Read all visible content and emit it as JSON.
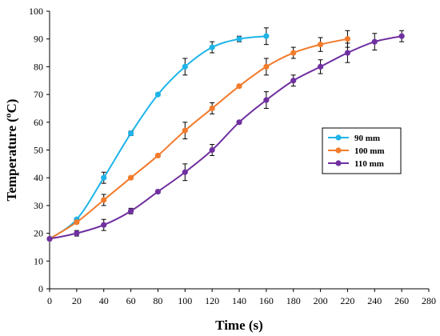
{
  "chart_data": {
    "type": "line",
    "xlabel": "Time (s)",
    "ylabel": "Temperature (ºC)",
    "xlim": [
      0,
      280
    ],
    "ylim": [
      0,
      100
    ],
    "xticks": [
      0,
      20,
      40,
      60,
      80,
      100,
      120,
      140,
      160,
      180,
      200,
      220,
      240,
      260,
      280
    ],
    "yticks": [
      0,
      10,
      20,
      30,
      40,
      50,
      60,
      70,
      80,
      90,
      100
    ],
    "grid": false,
    "legend_position": "right",
    "series": [
      {
        "name": "90 mm",
        "color": "#1fb4e8",
        "x": [
          0,
          20,
          40,
          60,
          80,
          100,
          120,
          140,
          160
        ],
        "y": [
          18,
          25,
          40,
          56,
          70,
          80,
          87,
          90,
          91
        ],
        "error": [
          0,
          0.5,
          2,
          0.8,
          0.5,
          3,
          2,
          1,
          3
        ]
      },
      {
        "name": "100 mm",
        "color": "#f27b2c",
        "x": [
          0,
          20,
          40,
          60,
          80,
          100,
          120,
          140,
          160,
          180,
          200,
          220
        ],
        "y": [
          18,
          24,
          32,
          40,
          48,
          57,
          65,
          73,
          80,
          85,
          88,
          90
        ],
        "error": [
          0,
          0.5,
          2,
          0.5,
          0.5,
          3,
          2,
          0.5,
          3,
          2,
          2.5,
          3
        ]
      },
      {
        "name": "110 mm",
        "color": "#7030a0",
        "x": [
          0,
          20,
          40,
          60,
          80,
          100,
          120,
          140,
          160,
          180,
          200,
          220,
          240,
          260
        ],
        "y": [
          18,
          20,
          23,
          28,
          35,
          42,
          50,
          60,
          68,
          75,
          80,
          85,
          89,
          91
        ],
        "error": [
          0,
          1,
          2,
          1,
          0.5,
          3,
          2,
          0.5,
          3,
          2,
          2.5,
          3.5,
          3,
          2
        ]
      }
    ]
  }
}
